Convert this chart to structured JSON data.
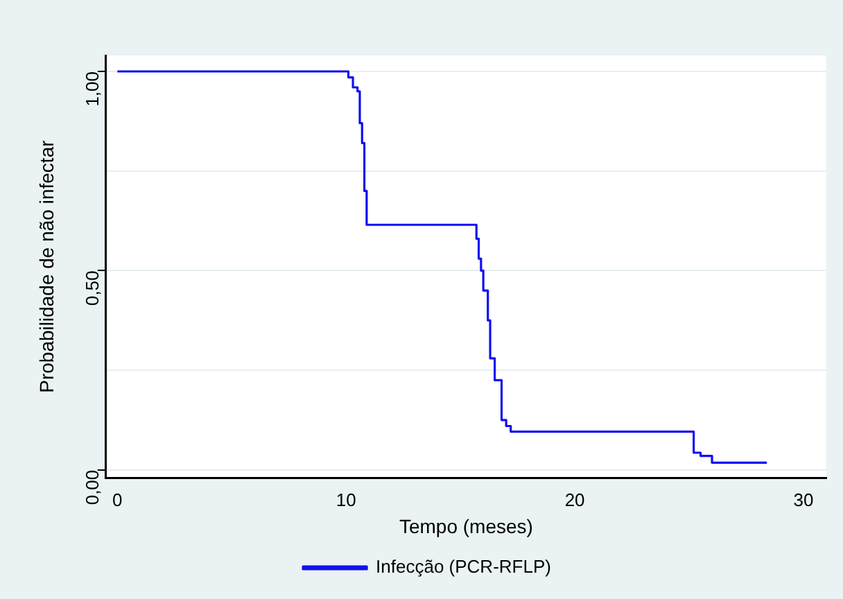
{
  "chart_data": {
    "type": "step",
    "xlabel": "Tempo (meses)",
    "ylabel": "Probabilidade de não infectar",
    "xlim": [
      -0.5,
      31
    ],
    "xticks": [
      0,
      10,
      20,
      30
    ],
    "ylim": [
      -0.02,
      1.04
    ],
    "yticks": [
      {
        "value": 0,
        "label": "0,00"
      },
      {
        "value": 0.25,
        "label": null
      },
      {
        "value": 0.5,
        "label": "0,50"
      },
      {
        "value": 0.75,
        "label": null
      },
      {
        "value": 1,
        "label": "1,00"
      }
    ],
    "grid": "y",
    "legend": "bottom",
    "marker": "none",
    "line_style": "solid",
    "series": [
      {
        "name": "Infecção (PCR-RFLP)",
        "color": "#1010f0",
        "x": [
          0,
          10.1,
          10.3,
          10.5,
          10.6,
          10.7,
          10.8,
          10.9,
          15.7,
          15.8,
          15.9,
          16.0,
          16.2,
          16.3,
          16.5,
          16.8,
          17.0,
          17.2,
          17.5,
          25.2,
          25.5,
          26.0,
          26.3,
          28.4
        ],
        "values": [
          1,
          0.985,
          0.96,
          0.95,
          0.87,
          0.82,
          0.7,
          0.615,
          0.58,
          0.53,
          0.5,
          0.45,
          0.375,
          0.28,
          0.225,
          0.125,
          0.11,
          0.096,
          0.096,
          0.043,
          0.035,
          0.018,
          0.018,
          0.018
        ]
      }
    ]
  }
}
